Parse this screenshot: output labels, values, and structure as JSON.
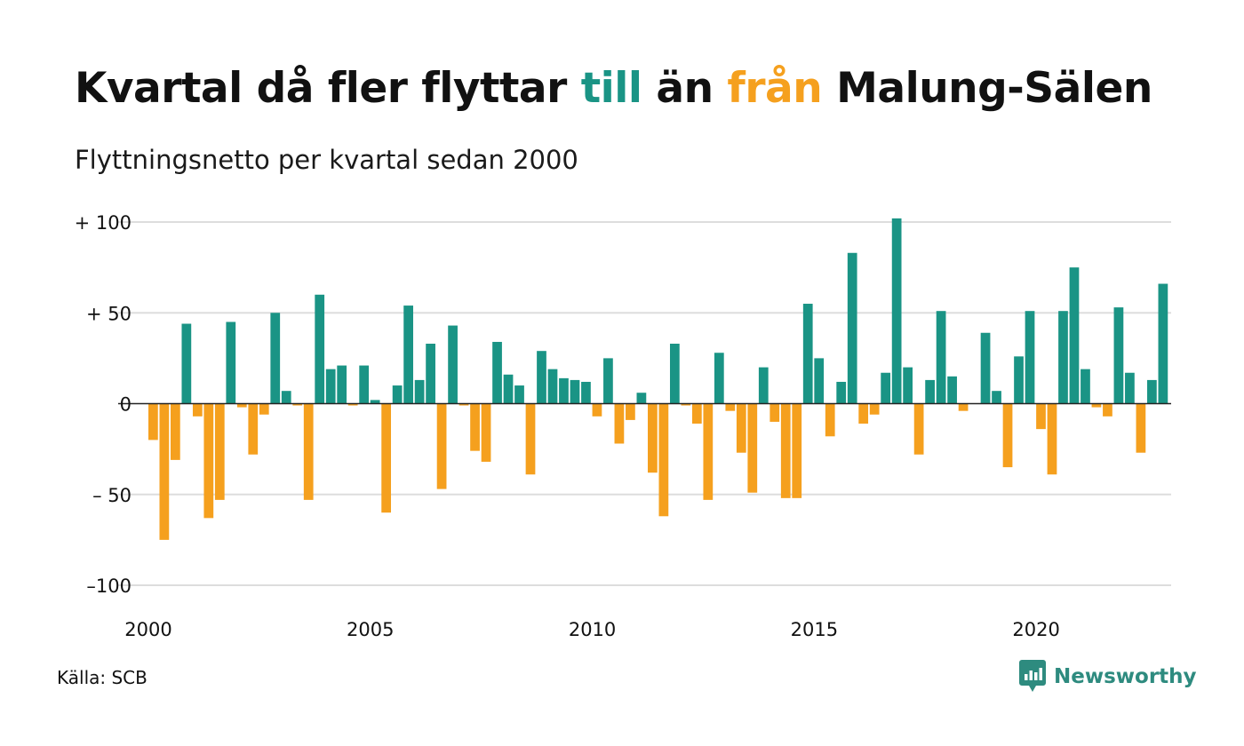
{
  "title": {
    "part1": "Kvartal då fler flyttar ",
    "till": "till",
    "part2": " än ",
    "fran": "från",
    "part3": " Malung-Sälen"
  },
  "subtitle": "Flyttningsnetto per kvartal sedan 2000",
  "source": "Källa: SCB",
  "brand": {
    "name": "Newsworthy",
    "icon": "newsworthy-logo-icon"
  },
  "colors": {
    "positive": "#1a9485",
    "negative": "#f5a01e",
    "grid": "#dddddd",
    "zero_line": "#222222",
    "brand": "#2e8b7f"
  },
  "chart_data": {
    "type": "bar",
    "title": "Kvartal då fler flyttar till än från Malung-Sälen",
    "subtitle": "Flyttningsnetto per kvartal sedan 2000",
    "x_start": 2000,
    "periods_per_year": 4,
    "ylim": [
      -100,
      100
    ],
    "yticks": [
      {
        "value": 100,
        "label": "+ 100"
      },
      {
        "value": 50,
        "label": "+  50"
      },
      {
        "value": 0,
        "label": "0"
      },
      {
        "value": -50,
        "label": "– 50"
      },
      {
        "value": -100,
        "label": "–100"
      }
    ],
    "xticks": [
      {
        "value": 2000,
        "label": "2000"
      },
      {
        "value": 2005,
        "label": "2005"
      },
      {
        "value": 2010,
        "label": "2010"
      },
      {
        "value": 2015,
        "label": "2015"
      },
      {
        "value": 2020,
        "label": "2020"
      }
    ],
    "grid": true,
    "values": [
      -20,
      -75,
      -31,
      44,
      -7,
      -63,
      -53,
      45,
      -2,
      -28,
      -6,
      50,
      7,
      -1,
      -53,
      60,
      19,
      21,
      -1,
      21,
      2,
      -60,
      10,
      54,
      13,
      33,
      -47,
      43,
      -1,
      -26,
      -32,
      34,
      16,
      10,
      -39,
      29,
      19,
      14,
      13,
      12,
      -7,
      25,
      -22,
      -9,
      6,
      -38,
      -62,
      33,
      -1,
      -11,
      -53,
      28,
      -4,
      -27,
      -49,
      20,
      -10,
      -52,
      -52,
      55,
      25,
      -18,
      12,
      83,
      -11,
      -6,
      17,
      102,
      20,
      -28,
      13,
      51,
      15,
      -4,
      0,
      39,
      7,
      -35,
      26,
      51,
      -14,
      -39,
      51,
      75,
      19,
      -2,
      -7,
      53,
      17,
      -27,
      13,
      66
    ]
  }
}
